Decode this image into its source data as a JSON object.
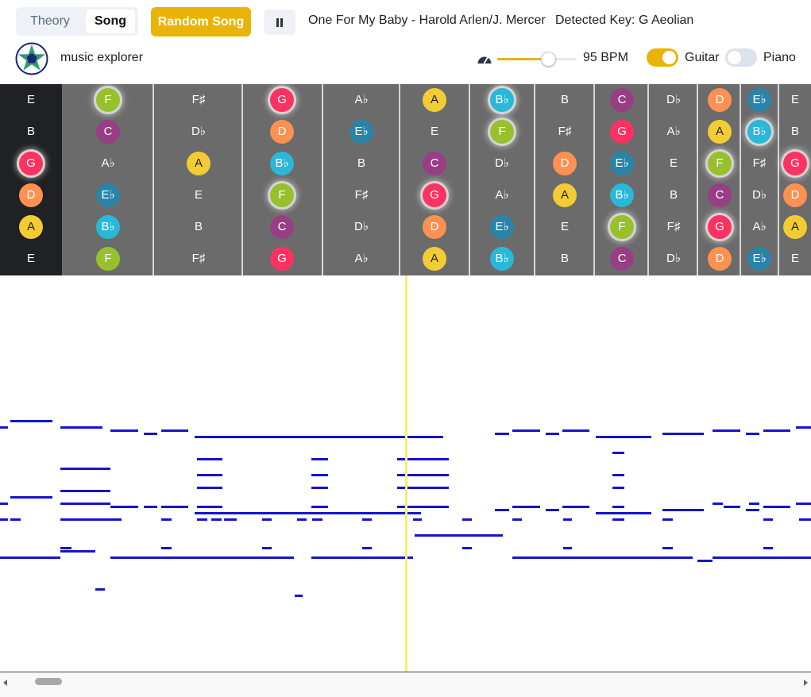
{
  "header": {
    "mode_tabs": [
      {
        "label": "Theory",
        "active": false
      },
      {
        "label": "Song",
        "active": true
      }
    ],
    "random_song_label": "Random Song",
    "pause_icon": "pause-icon",
    "song_title": "One For My Baby - Harold Arlen/J. Mercer",
    "detected_key": "Detected Key: G Aeolian",
    "app_name": "music explorer",
    "logo_icon": "pentagram-star-icon",
    "tempo": {
      "icon": "speedometer-icon",
      "level": 0.64,
      "label": "95 BPM"
    },
    "instruments": [
      {
        "label": "Guitar",
        "on": true
      },
      {
        "label": "Piano",
        "on": false
      }
    ]
  },
  "colors": {
    "accent": "#eab308",
    "roll_note": "#1515cc",
    "playhead": "#f5f06a",
    "fretboard": "#6b6b6b",
    "nut": "#202124",
    "note_colors": {
      "A": "#f2cc34",
      "B♭": "#2ab7d8",
      "C": "#983e84",
      "D": "#fc9152",
      "E♭": "#2a84a8",
      "F": "#98c02c",
      "G": "#fd3262"
    }
  },
  "fretboard": {
    "strings": [
      [
        "E",
        "F",
        "F♯",
        "G",
        "A♭",
        "A",
        "B♭",
        "B",
        "C",
        "D♭",
        "D",
        "E♭",
        "E"
      ],
      [
        "B",
        "C",
        "D♭",
        "D",
        "E♭",
        "E",
        "F",
        "F♯",
        "G",
        "A♭",
        "A",
        "B♭",
        "B"
      ],
      [
        "G",
        "A♭",
        "A",
        "B♭",
        "B",
        "C",
        "D♭",
        "D",
        "E♭",
        "E",
        "F",
        "F♯",
        "G"
      ],
      [
        "D",
        "E♭",
        "E",
        "F",
        "F♯",
        "G",
        "A♭",
        "A",
        "B♭",
        "B",
        "C",
        "D♭",
        "D"
      ],
      [
        "A",
        "B♭",
        "B",
        "C",
        "D♭",
        "D",
        "E♭",
        "E",
        "F",
        "F♯",
        "G",
        "A♭",
        "A"
      ],
      [
        "E",
        "F",
        "F♯",
        "G",
        "A♭",
        "A",
        "B♭",
        "B",
        "C",
        "D♭",
        "D",
        "E♭",
        "E"
      ]
    ],
    "highlighted": [
      [
        "F",
        "B♭",
        "G"
      ],
      [
        "D♭",
        "F",
        "B♭"
      ],
      [
        "G",
        "D♭",
        "F"
      ],
      [
        "F",
        "G",
        "D♭"
      ],
      [
        "F",
        "G"
      ],
      []
    ]
  }
}
